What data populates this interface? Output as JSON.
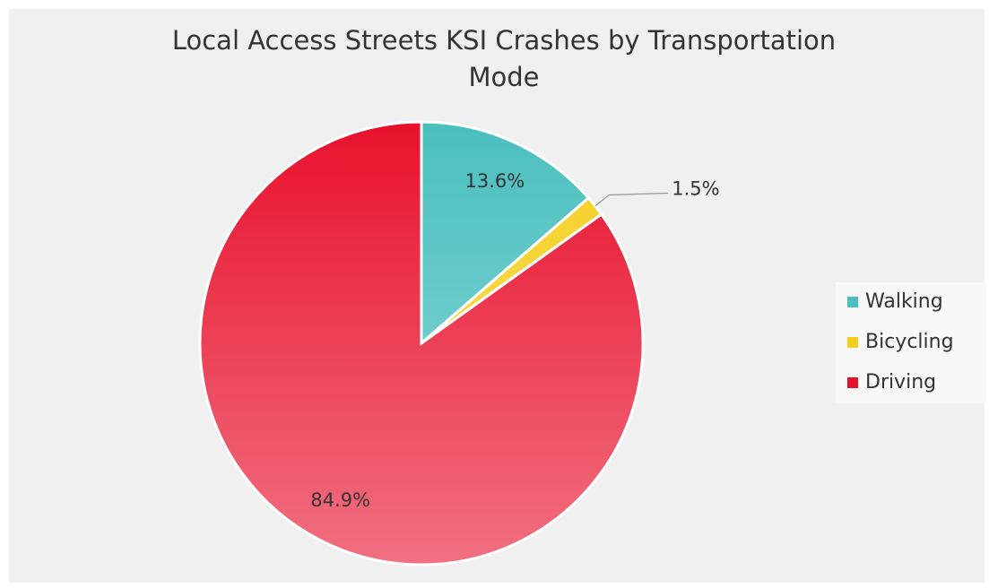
{
  "chart_data": {
    "type": "pie",
    "title": [
      "Local Access Streets KSI Crashes by Transportation",
      "Mode"
    ],
    "categories": [
      "Walking",
      "Bicycling",
      "Driving"
    ],
    "values": [
      13.6,
      1.5,
      84.9
    ],
    "value_labels": [
      "13.6%",
      "1.5%",
      "84.9%"
    ],
    "colors": [
      "#4bbfbf",
      "#f5cf1e",
      "#e8112d"
    ],
    "legend": "right"
  }
}
